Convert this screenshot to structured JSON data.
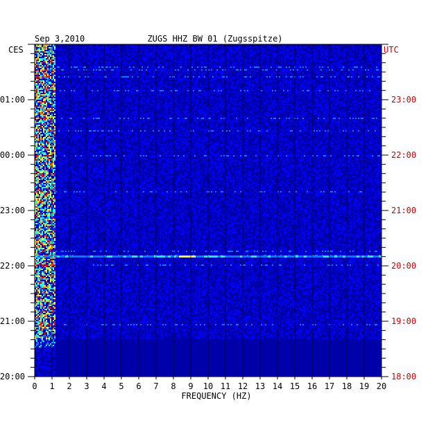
{
  "chart_data": {
    "type": "heatmap",
    "date_label": "Sep 3,2010",
    "title": "ZUGS HHZ BW 01 (Zugsspitze)",
    "left_axis_label": "CES",
    "right_axis_label": "UTC",
    "xlabel": "FREQUENCY (HZ)",
    "xlim": [
      0,
      20
    ],
    "x_ticks": [
      0,
      1,
      2,
      3,
      4,
      5,
      6,
      7,
      8,
      9,
      10,
      11,
      12,
      13,
      14,
      15,
      16,
      17,
      18,
      19,
      20
    ],
    "left_time_ticks": [
      {
        "label": "01:00",
        "hours_after_start": 5
      },
      {
        "label": "00:00",
        "hours_after_start": 4
      },
      {
        "label": "23:00",
        "hours_after_start": 3
      },
      {
        "label": "22:00",
        "hours_after_start": 2
      },
      {
        "label": "21:00",
        "hours_after_start": 1
      },
      {
        "label": "20:00",
        "hours_after_start": 0
      }
    ],
    "right_time_ticks": [
      {
        "label": "23:00",
        "hours_after_start": 5
      },
      {
        "label": "22:00",
        "hours_after_start": 4
      },
      {
        "label": "21:00",
        "hours_after_start": 3
      },
      {
        "label": "20:00",
        "hours_after_start": 2
      },
      {
        "label": "19:00",
        "hours_after_start": 1
      },
      {
        "label": "18:00",
        "hours_after_start": 0
      }
    ],
    "time_span_hours": 6,
    "colormap": [
      "#00008f",
      "#0000ff",
      "#0080ff",
      "#00ffff",
      "#80ff80",
      "#ffff00",
      "#ff8000",
      "#ff0000"
    ],
    "background_color": "#0000a8",
    "right_label_color": "#cc0000"
  }
}
